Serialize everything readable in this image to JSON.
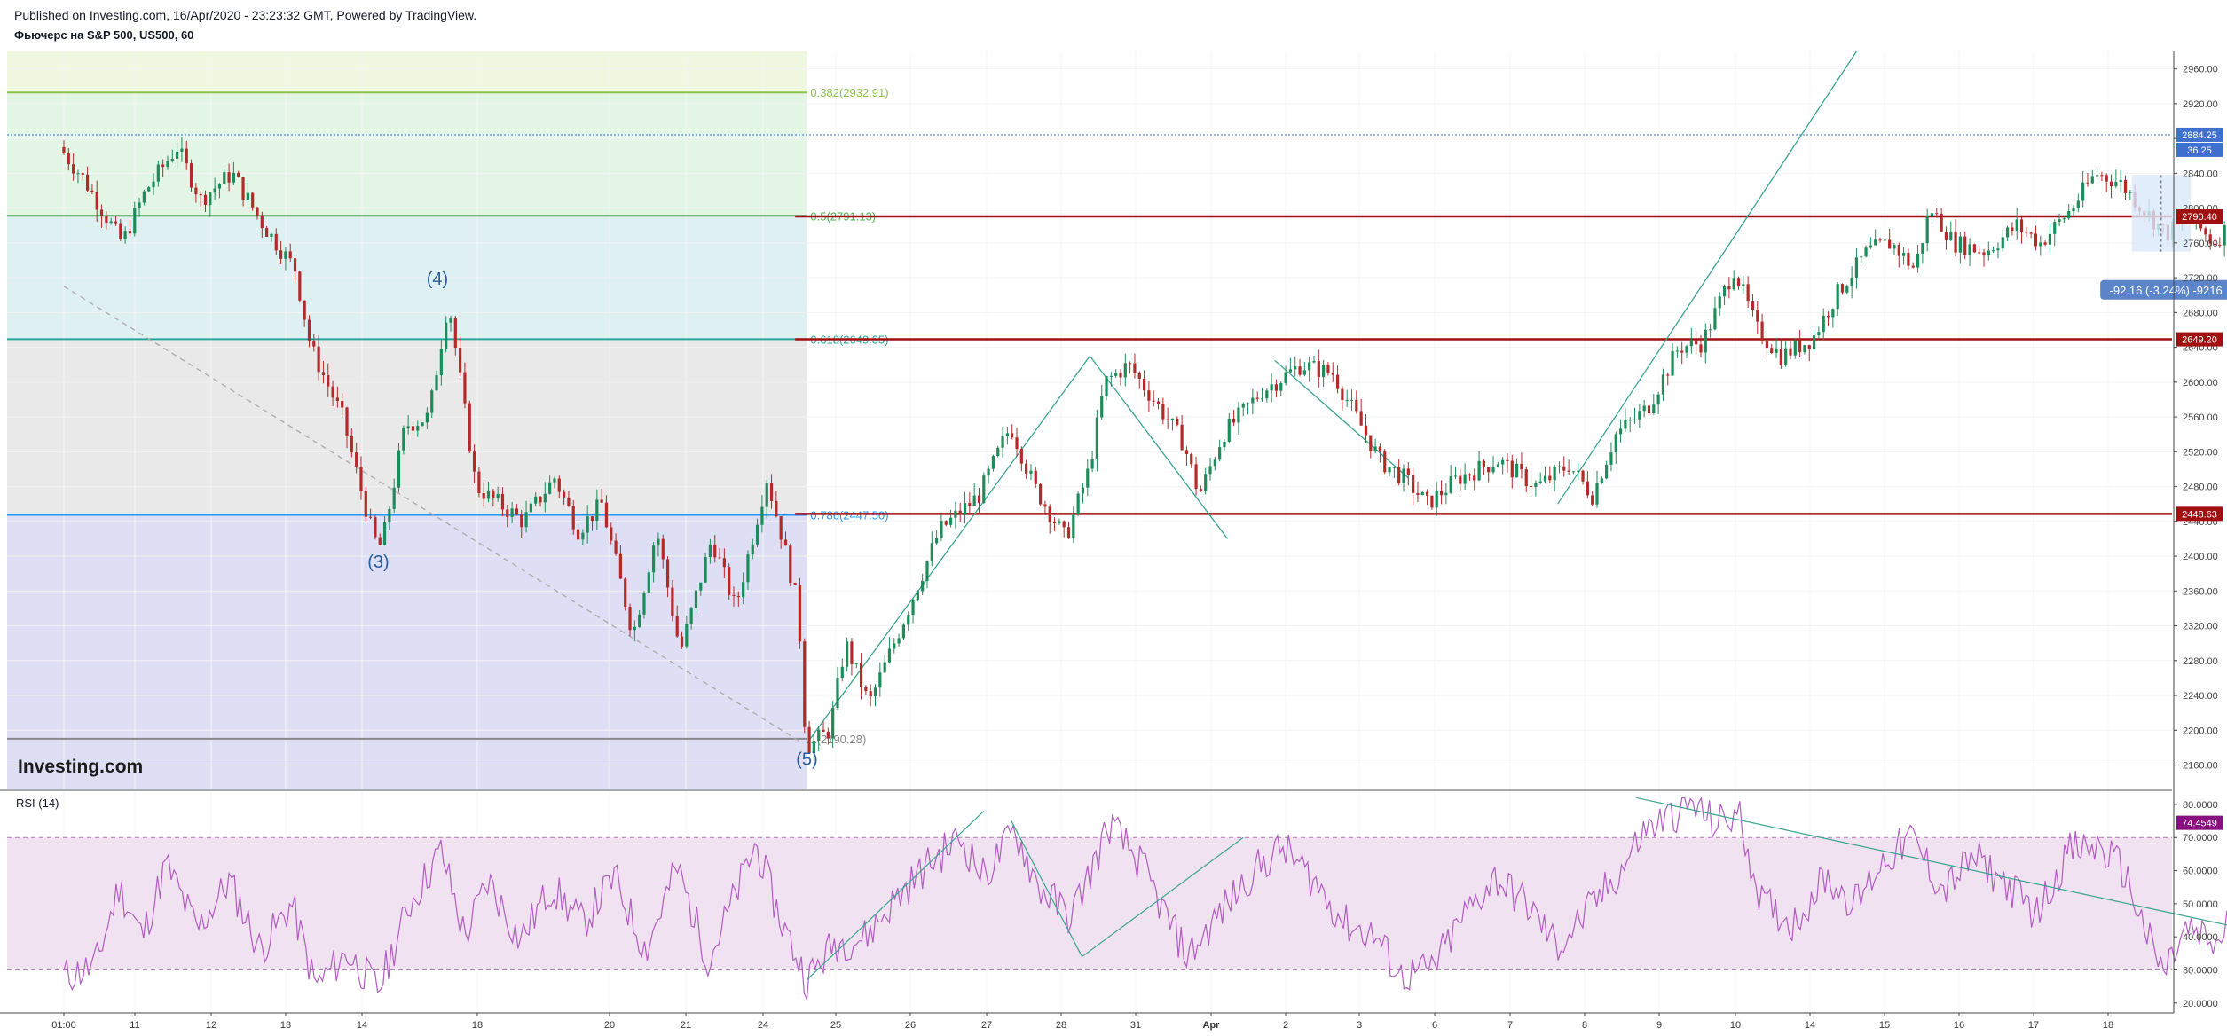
{
  "header": {
    "published": "Published on Investing.com, 16/Apr/2020 - 23:23:32 GMT, Powered by TradingView.",
    "symbol": "Фьючерс на S&P 500, US500, 60"
  },
  "watermark": "Investing.com",
  "colors": {
    "up": "#1e8c5a",
    "down": "#b22a2a",
    "rsi_line": "#b05cc0",
    "rsi_band": "#f1e2f1",
    "resistance": "#a01010",
    "trendline": "#3aa48e",
    "price_tag": "#3f6fcf",
    "rsi_tag": "#8a0f7e"
  },
  "chart_data": [
    {
      "type": "candlestick",
      "title": "Фьючерс на S&P 500, US500, 60",
      "x_tick_labels": [
        "01:00",
        "11",
        "12",
        "13",
        "14",
        "18",
        "20",
        "21",
        "24",
        "25",
        "26",
        "27",
        "28",
        "31",
        "Apr",
        "2",
        "3",
        "6",
        "7",
        "8",
        "9",
        "10",
        "14",
        "15",
        "16",
        "17",
        "18"
      ],
      "y_tick_labels": [
        "2160.00",
        "2200.00",
        "2240.00",
        "2280.00",
        "2320.00",
        "2360.00",
        "2400.00",
        "2440.00",
        "2480.00",
        "2520.00",
        "2560.00",
        "2600.00",
        "2640.00",
        "2680.00",
        "2720.00",
        "2760.00",
        "2800.00",
        "2840.00",
        "2880.00",
        "2920.00",
        "2960.00"
      ],
      "ylim": [
        2132,
        2980
      ],
      "last_price": "2884.25",
      "last_change": "36.25",
      "path_points": [
        {
          "x": 0,
          "price": 2870
        },
        {
          "x": 0.3,
          "price": 2835
        },
        {
          "x": 0.8,
          "price": 2760
        },
        {
          "x": 1.1,
          "price": 2820
        },
        {
          "x": 1.5,
          "price": 2870
        },
        {
          "x": 1.8,
          "price": 2810
        },
        {
          "x": 2.2,
          "price": 2840
        },
        {
          "x": 2.6,
          "price": 2780
        },
        {
          "x": 3.0,
          "price": 2730
        },
        {
          "x": 3.2,
          "price": 2640
        },
        {
          "x": 3.6,
          "price": 2560
        },
        {
          "x": 4.0,
          "price": 2420
        },
        {
          "x": 4.1,
          "price": 2410
        },
        {
          "x": 4.4,
          "price": 2550
        },
        {
          "x": 4.7,
          "price": 2560
        },
        {
          "x": 4.95,
          "price": 2695
        },
        {
          "x": 5.3,
          "price": 2480
        },
        {
          "x": 5.6,
          "price": 2460
        },
        {
          "x": 5.9,
          "price": 2440
        },
        {
          "x": 6.3,
          "price": 2490
        },
        {
          "x": 6.6,
          "price": 2430
        },
        {
          "x": 6.9,
          "price": 2460
        },
        {
          "x": 7.3,
          "price": 2310
        },
        {
          "x": 7.6,
          "price": 2430
        },
        {
          "x": 7.9,
          "price": 2290
        },
        {
          "x": 8.3,
          "price": 2420
        },
        {
          "x": 8.6,
          "price": 2340
        },
        {
          "x": 9.0,
          "price": 2490
        },
        {
          "x": 9.2,
          "price": 2420
        },
        {
          "x": 9.4,
          "price": 2340
        },
        {
          "x": 9.5,
          "price": 2180
        },
        {
          "x": 9.8,
          "price": 2200
        },
        {
          "x": 10.0,
          "price": 2300
        },
        {
          "x": 10.3,
          "price": 2230
        },
        {
          "x": 10.8,
          "price": 2340
        },
        {
          "x": 11.2,
          "price": 2430
        },
        {
          "x": 11.7,
          "price": 2470
        },
        {
          "x": 12.1,
          "price": 2550
        },
        {
          "x": 12.4,
          "price": 2480
        },
        {
          "x": 12.8,
          "price": 2420
        },
        {
          "x": 13.1,
          "price": 2500
        },
        {
          "x": 13.3,
          "price": 2600
        },
        {
          "x": 13.6,
          "price": 2620
        },
        {
          "x": 14.0,
          "price": 2570
        },
        {
          "x": 14.3,
          "price": 2530
        },
        {
          "x": 14.5,
          "price": 2470
        },
        {
          "x": 14.8,
          "price": 2540
        },
        {
          "x": 15.3,
          "price": 2590
        },
        {
          "x": 15.8,
          "price": 2620
        },
        {
          "x": 16.2,
          "price": 2610
        },
        {
          "x": 16.5,
          "price": 2560
        },
        {
          "x": 16.8,
          "price": 2510
        },
        {
          "x": 17.1,
          "price": 2490
        },
        {
          "x": 17.4,
          "price": 2460
        },
        {
          "x": 17.8,
          "price": 2490
        },
        {
          "x": 18.3,
          "price": 2510
        },
        {
          "x": 18.8,
          "price": 2480
        },
        {
          "x": 19.2,
          "price": 2505
        },
        {
          "x": 19.5,
          "price": 2470
        },
        {
          "x": 19.8,
          "price": 2540
        },
        {
          "x": 20.2,
          "price": 2570
        },
        {
          "x": 20.6,
          "price": 2640
        },
        {
          "x": 20.9,
          "price": 2645
        },
        {
          "x": 21.3,
          "price": 2730
        },
        {
          "x": 21.6,
          "price": 2660
        },
        {
          "x": 21.9,
          "price": 2630
        },
        {
          "x": 22.3,
          "price": 2650
        },
        {
          "x": 22.6,
          "price": 2700
        },
        {
          "x": 23.0,
          "price": 2750
        },
        {
          "x": 23.3,
          "price": 2760
        },
        {
          "x": 23.6,
          "price": 2730
        },
        {
          "x": 23.8,
          "price": 2800
        },
        {
          "x": 24.1,
          "price": 2760
        },
        {
          "x": 24.5,
          "price": 2750
        },
        {
          "x": 24.9,
          "price": 2780
        },
        {
          "x": 25.2,
          "price": 2760
        },
        {
          "x": 25.6,
          "price": 2800
        },
        {
          "x": 25.9,
          "price": 2840
        },
        {
          "x": 26.2,
          "price": 2830
        },
        {
          "x": 26.5,
          "price": 2800
        },
        {
          "x": 26.8,
          "price": 2770
        },
        {
          "x": 27.1,
          "price": 2790
        },
        {
          "x": 27.4,
          "price": 2760
        },
        {
          "x": 27.7,
          "price": 2790
        },
        {
          "x": 27.9,
          "price": 2800
        },
        {
          "x": 28.0,
          "price": 2830
        },
        {
          "x": 28.15,
          "price": 2885
        }
      ],
      "fibonacci": [
        {
          "label": "0.382(2932.91)",
          "price": 2932.91,
          "color": "#8bc34a"
        },
        {
          "label": "0.5(2791.13)",
          "price": 2791.13,
          "color": "#4caf50"
        },
        {
          "label": "0.618(2649.35)",
          "price": 2649.35,
          "color": "#26a69a"
        },
        {
          "label": "0.786(2447.50)",
          "price": 2447.5,
          "color": "#2196f3"
        },
        {
          "label": "1(2190.28)",
          "price": 2190.28,
          "color": "#888888"
        }
      ],
      "resistance_levels": [
        {
          "label": "2790.40",
          "price": 2790.4
        },
        {
          "label": "2649.20",
          "price": 2649.2
        },
        {
          "label": "2448.63",
          "price": 2448.63
        }
      ],
      "wave_labels": [
        {
          "text": "(4)",
          "x": 4.75,
          "price": 2712
        },
        {
          "text": "(3)",
          "x": 4.0,
          "price": 2387
        },
        {
          "text": "(5)",
          "x": 9.45,
          "price": 2160
        }
      ],
      "measure_label": "-92.16 (-3.24%) -9216"
    },
    {
      "type": "line",
      "title": "RSI (14)",
      "y_tick_labels": [
        "20.0000",
        "30.0000",
        "40.0000",
        "50.0000",
        "60.0000",
        "70.0000",
        "80.0000"
      ],
      "ylim": [
        17,
        84
      ],
      "band": [
        30,
        70
      ],
      "last_value": "74.4549",
      "path_points": [
        {
          "x": 0,
          "price": 28
        },
        {
          "x": 0.4,
          "price": 31
        },
        {
          "x": 0.7,
          "price": 55
        },
        {
          "x": 1.0,
          "price": 40
        },
        {
          "x": 1.3,
          "price": 62
        },
        {
          "x": 1.7,
          "price": 42
        },
        {
          "x": 2.1,
          "price": 57
        },
        {
          "x": 2.5,
          "price": 36
        },
        {
          "x": 2.9,
          "price": 50
        },
        {
          "x": 3.2,
          "price": 25
        },
        {
          "x": 3.6,
          "price": 35
        },
        {
          "x": 4.0,
          "price": 24
        },
        {
          "x": 4.4,
          "price": 50
        },
        {
          "x": 4.8,
          "price": 66
        },
        {
          "x": 5.1,
          "price": 40
        },
        {
          "x": 5.4,
          "price": 57
        },
        {
          "x": 5.8,
          "price": 39
        },
        {
          "x": 6.2,
          "price": 55
        },
        {
          "x": 6.6,
          "price": 44
        },
        {
          "x": 7.0,
          "price": 58
        },
        {
          "x": 7.4,
          "price": 36
        },
        {
          "x": 7.8,
          "price": 61
        },
        {
          "x": 8.2,
          "price": 33
        },
        {
          "x": 8.6,
          "price": 56
        },
        {
          "x": 8.8,
          "price": 68
        },
        {
          "x": 9.1,
          "price": 46
        },
        {
          "x": 9.45,
          "price": 27
        },
        {
          "x": 9.8,
          "price": 38
        },
        {
          "x": 10.2,
          "price": 40
        },
        {
          "x": 10.6,
          "price": 52
        },
        {
          "x": 11.0,
          "price": 62
        },
        {
          "x": 11.4,
          "price": 70
        },
        {
          "x": 11.7,
          "price": 58
        },
        {
          "x": 12.1,
          "price": 72
        },
        {
          "x": 12.4,
          "price": 55
        },
        {
          "x": 12.8,
          "price": 46
        },
        {
          "x": 13.1,
          "price": 62
        },
        {
          "x": 13.3,
          "price": 74
        },
        {
          "x": 13.7,
          "price": 62
        },
        {
          "x": 14.0,
          "price": 47
        },
        {
          "x": 14.3,
          "price": 34
        },
        {
          "x": 14.7,
          "price": 47
        },
        {
          "x": 15.1,
          "price": 59
        },
        {
          "x": 15.5,
          "price": 67
        },
        {
          "x": 15.9,
          "price": 57
        },
        {
          "x": 16.3,
          "price": 44
        },
        {
          "x": 16.7,
          "price": 40
        },
        {
          "x": 17.0,
          "price": 28
        },
        {
          "x": 17.4,
          "price": 30
        },
        {
          "x": 17.8,
          "price": 46
        },
        {
          "x": 18.2,
          "price": 58
        },
        {
          "x": 18.6,
          "price": 50
        },
        {
          "x": 19.0,
          "price": 37
        },
        {
          "x": 19.4,
          "price": 48
        },
        {
          "x": 19.8,
          "price": 60
        },
        {
          "x": 20.1,
          "price": 72
        },
        {
          "x": 20.4,
          "price": 76
        },
        {
          "x": 20.7,
          "price": 80
        },
        {
          "x": 21.0,
          "price": 74
        },
        {
          "x": 21.3,
          "price": 77
        },
        {
          "x": 21.6,
          "price": 50
        },
        {
          "x": 22.0,
          "price": 44
        },
        {
          "x": 22.4,
          "price": 58
        },
        {
          "x": 22.8,
          "price": 50
        },
        {
          "x": 23.1,
          "price": 62
        },
        {
          "x": 23.5,
          "price": 70
        },
        {
          "x": 23.9,
          "price": 54
        },
        {
          "x": 24.3,
          "price": 64
        },
        {
          "x": 24.7,
          "price": 56
        },
        {
          "x": 25.1,
          "price": 47
        },
        {
          "x": 25.5,
          "price": 66
        },
        {
          "x": 25.9,
          "price": 67
        },
        {
          "x": 26.2,
          "price": 60
        },
        {
          "x": 26.5,
          "price": 40
        },
        {
          "x": 26.7,
          "price": 29
        },
        {
          "x": 27.0,
          "price": 42
        },
        {
          "x": 27.4,
          "price": 37
        },
        {
          "x": 27.7,
          "price": 58
        },
        {
          "x": 27.9,
          "price": 46
        },
        {
          "x": 28.1,
          "price": 62
        },
        {
          "x": 28.3,
          "price": 74.45
        }
      ]
    }
  ]
}
